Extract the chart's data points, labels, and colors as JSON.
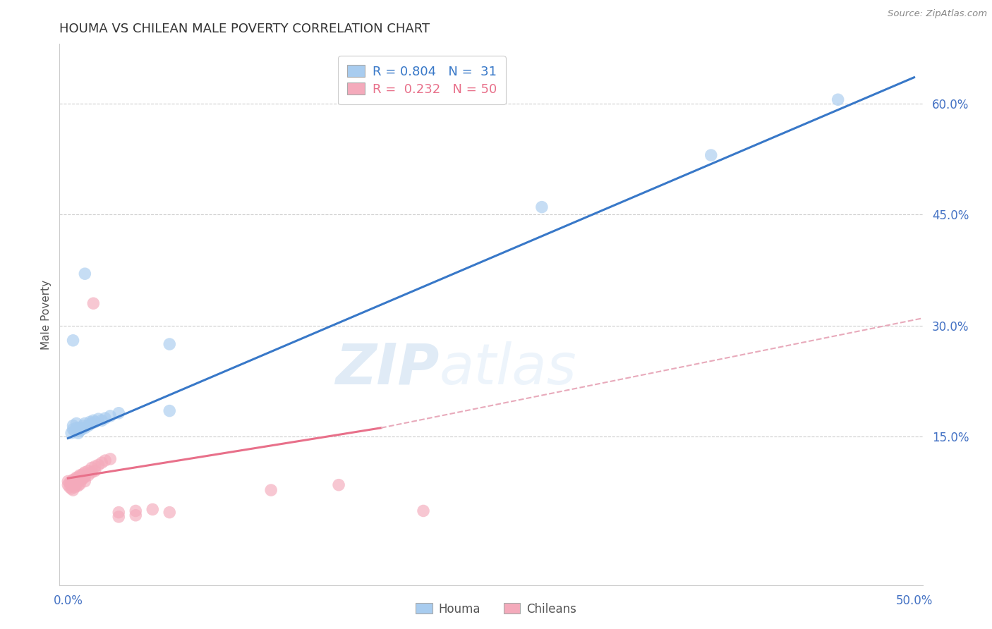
{
  "title": "HOUMA VS CHILEAN MALE POVERTY CORRELATION CHART",
  "source": "Source: ZipAtlas.com",
  "ylabel": "Male Poverty",
  "xlim": [
    -0.005,
    0.505
  ],
  "ylim": [
    -0.05,
    0.68
  ],
  "xticks": [
    0.0,
    0.1,
    0.2,
    0.3,
    0.4,
    0.5
  ],
  "xticklabels": [
    "0.0%",
    "",
    "",
    "",
    "",
    "50.0%"
  ],
  "yticks": [
    0.15,
    0.3,
    0.45,
    0.6
  ],
  "yticklabels": [
    "15.0%",
    "30.0%",
    "45.0%",
    "60.0%"
  ],
  "houma_R": 0.804,
  "houma_N": 31,
  "chilean_R": 0.232,
  "chilean_N": 50,
  "houma_color": "#A8CCEF",
  "chilean_color": "#F4AABB",
  "houma_line_color": "#3878C8",
  "chilean_line_color": "#E8708A",
  "chilean_line_dashed_color": "#E8AABB",
  "houma_scatter": [
    [
      0.002,
      0.155
    ],
    [
      0.003,
      0.16
    ],
    [
      0.003,
      0.165
    ],
    [
      0.004,
      0.158
    ],
    [
      0.005,
      0.162
    ],
    [
      0.005,
      0.168
    ],
    [
      0.006,
      0.155
    ],
    [
      0.006,
      0.16
    ],
    [
      0.007,
      0.158
    ],
    [
      0.007,
      0.162
    ],
    [
      0.008,
      0.16
    ],
    [
      0.009,
      0.165
    ],
    [
      0.01,
      0.162
    ],
    [
      0.01,
      0.168
    ],
    [
      0.012,
      0.165
    ],
    [
      0.013,
      0.17
    ],
    [
      0.014,
      0.168
    ],
    [
      0.015,
      0.172
    ],
    [
      0.016,
      0.17
    ],
    [
      0.018,
      0.174
    ],
    [
      0.02,
      0.172
    ],
    [
      0.022,
      0.175
    ],
    [
      0.025,
      0.178
    ],
    [
      0.03,
      0.182
    ],
    [
      0.003,
      0.28
    ],
    [
      0.06,
      0.185
    ],
    [
      0.01,
      0.37
    ],
    [
      0.06,
      0.275
    ],
    [
      0.28,
      0.46
    ],
    [
      0.38,
      0.53
    ],
    [
      0.455,
      0.605
    ]
  ],
  "chilean_scatter": [
    [
      0.0,
      0.085
    ],
    [
      0.0,
      0.09
    ],
    [
      0.001,
      0.088
    ],
    [
      0.001,
      0.082
    ],
    [
      0.002,
      0.09
    ],
    [
      0.002,
      0.085
    ],
    [
      0.002,
      0.08
    ],
    [
      0.003,
      0.092
    ],
    [
      0.003,
      0.088
    ],
    [
      0.003,
      0.084
    ],
    [
      0.003,
      0.078
    ],
    [
      0.004,
      0.092
    ],
    [
      0.004,
      0.086
    ],
    [
      0.004,
      0.082
    ],
    [
      0.005,
      0.095
    ],
    [
      0.005,
      0.09
    ],
    [
      0.005,
      0.085
    ],
    [
      0.006,
      0.095
    ],
    [
      0.006,
      0.09
    ],
    [
      0.006,
      0.084
    ],
    [
      0.007,
      0.098
    ],
    [
      0.007,
      0.092
    ],
    [
      0.007,
      0.086
    ],
    [
      0.008,
      0.098
    ],
    [
      0.008,
      0.092
    ],
    [
      0.009,
      0.1
    ],
    [
      0.009,
      0.094
    ],
    [
      0.01,
      0.102
    ],
    [
      0.01,
      0.096
    ],
    [
      0.01,
      0.09
    ],
    [
      0.012,
      0.104
    ],
    [
      0.012,
      0.098
    ],
    [
      0.014,
      0.108
    ],
    [
      0.014,
      0.102
    ],
    [
      0.016,
      0.11
    ],
    [
      0.016,
      0.104
    ],
    [
      0.018,
      0.112
    ],
    [
      0.02,
      0.115
    ],
    [
      0.022,
      0.118
    ],
    [
      0.025,
      0.12
    ],
    [
      0.03,
      0.048
    ],
    [
      0.03,
      0.042
    ],
    [
      0.04,
      0.05
    ],
    [
      0.04,
      0.044
    ],
    [
      0.05,
      0.052
    ],
    [
      0.06,
      0.048
    ],
    [
      0.015,
      0.33
    ],
    [
      0.12,
      0.078
    ],
    [
      0.16,
      0.085
    ],
    [
      0.21,
      0.05
    ]
  ],
  "houma_line": [
    [
      0.0,
      0.148
    ],
    [
      0.5,
      0.635
    ]
  ],
  "chilean_line_solid": [
    [
      0.0,
      0.094
    ],
    [
      0.185,
      0.162
    ]
  ],
  "chilean_line_dashed": [
    [
      0.185,
      0.162
    ],
    [
      0.505,
      0.31
    ]
  ],
  "watermark_zip": "ZIP",
  "watermark_atlas": "atlas",
  "background_color": "#FFFFFF"
}
